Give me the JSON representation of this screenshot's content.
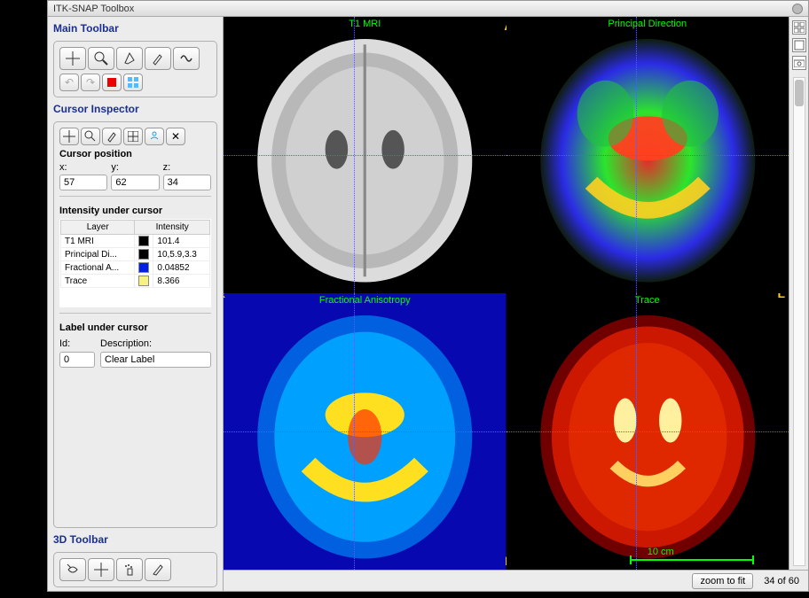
{
  "window": {
    "title": "ITK-SNAP Toolbox"
  },
  "toolbar": {
    "main_title": "Main Toolbar",
    "cursor_title": "Cursor Inspector",
    "three_d_title": "3D Toolbar"
  },
  "cursor": {
    "position_label": "Cursor position",
    "x_label": "x:",
    "y_label": "y:",
    "z_label": "z:",
    "x": "57",
    "y": "62",
    "z": "34",
    "intensity_label": "Intensity under cursor",
    "col_layer": "Layer",
    "col_intensity": "Intensity",
    "rows": [
      {
        "layer": "T1 MRI",
        "color": "#000000",
        "intensity": "101.4"
      },
      {
        "layer": "Principal Di...",
        "color": "#000000",
        "intensity": "10,5.9,3.3"
      },
      {
        "layer": "Fractional A...",
        "color": "#0020e0",
        "intensity": "0.04852"
      },
      {
        "layer": "Trace",
        "color": "#f8f080",
        "intensity": "8.366"
      }
    ],
    "label_under_label": "Label under cursor",
    "id_label": "Id:",
    "desc_label": "Description:",
    "id": "0",
    "desc": "Clear Label"
  },
  "views": {
    "tl_title": "T1 MRI",
    "tr_title": "Principal Direction",
    "bl_title": "Fractional Anisotropy",
    "br_title": "Trace",
    "orient_A": "A",
    "orient_P": "P",
    "orient_L": "L",
    "orient_R": "R",
    "scale_text": "10 cm",
    "crosshair_tl": {
      "vx": "46%",
      "hy": "50%"
    },
    "crosshair_tr": {
      "vx": "46%",
      "hy": "50%"
    },
    "crosshair_bl": {
      "vx": "46%",
      "hy": "50%"
    },
    "crosshair_br": {
      "vx": "46%",
      "hy": "50%"
    },
    "colors": {
      "t1_bg": "#000000",
      "t1_brain_outer": "#d6d6d6",
      "t1_brain_inner": "#9a9a9a",
      "pd_bg": "#000000",
      "fa_bg": "#0a0aa0",
      "fa_brain": "#00bfff",
      "fa_highlight": "#ffd000",
      "tr_bg": "#000000",
      "tr_brain": "#cc1800",
      "tr_highlight": "#ffe060"
    }
  },
  "footer": {
    "zoom_label": "zoom to fit",
    "page": "34 of 60"
  }
}
